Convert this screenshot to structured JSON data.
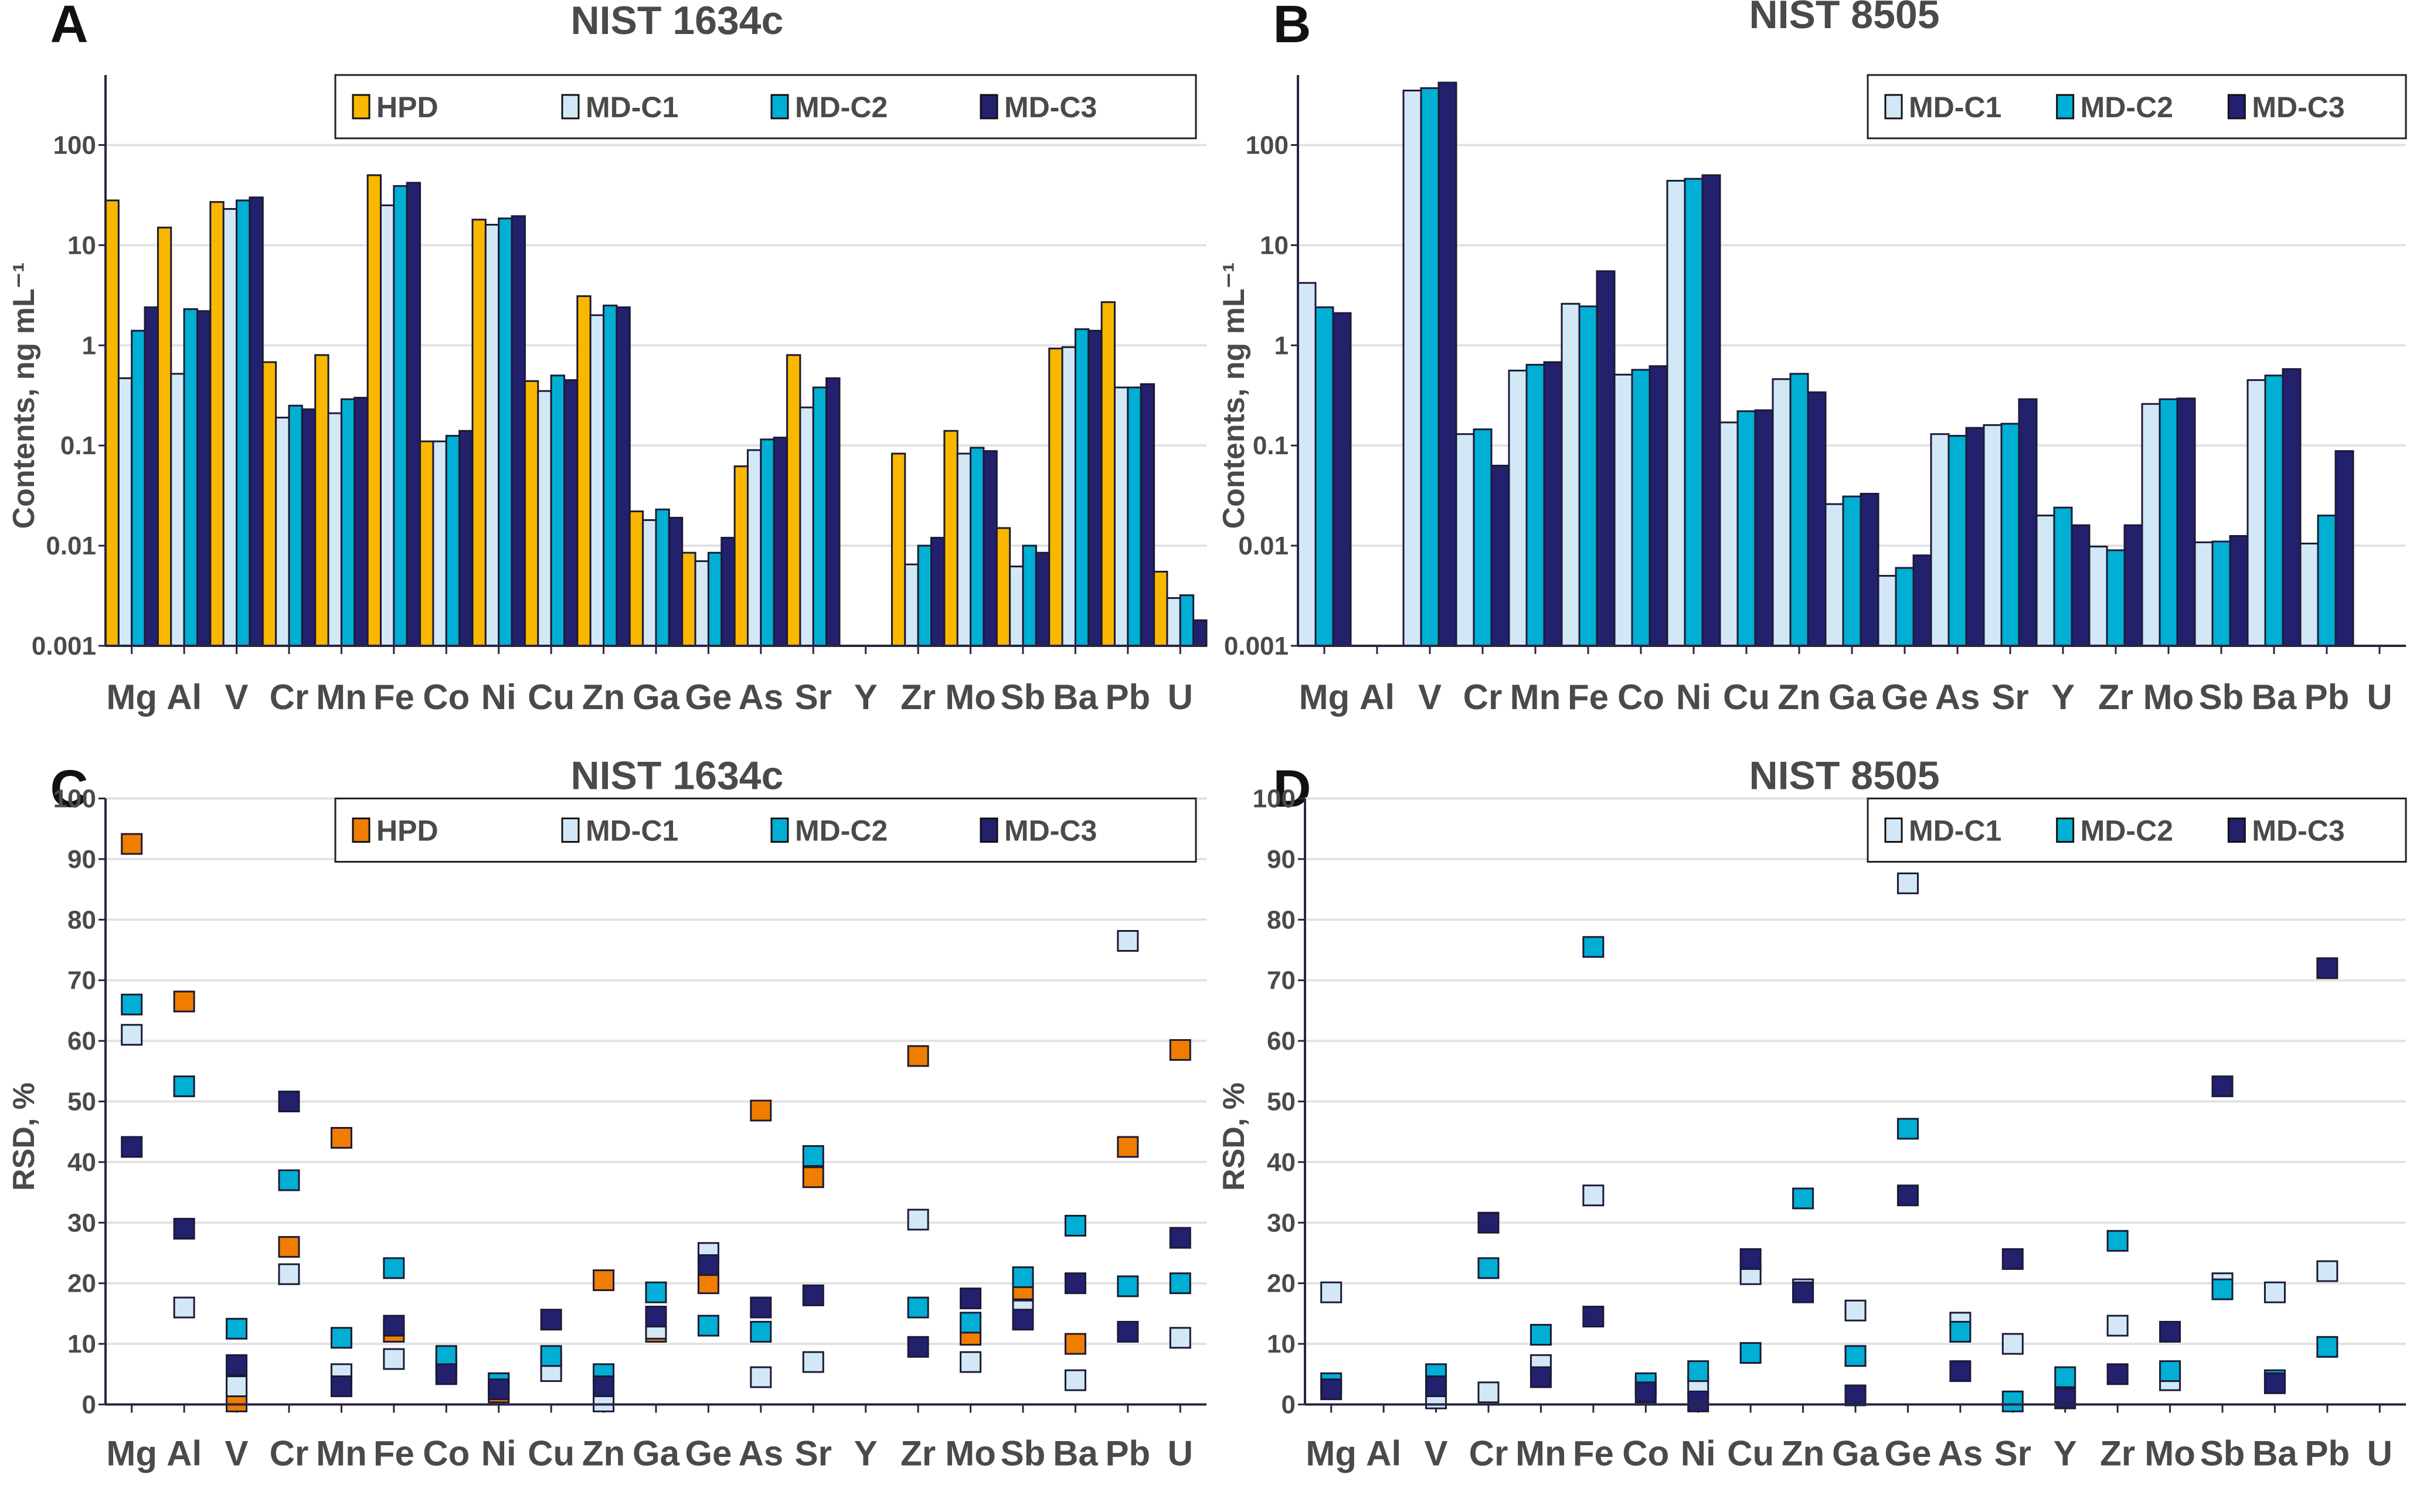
{
  "figure": {
    "categories": [
      "Mg",
      "Al",
      "V",
      "Cr",
      "Mn",
      "Fe",
      "Co",
      "Ni",
      "Cu",
      "Zn",
      "Ga",
      "Ge",
      "As",
      "Sr",
      "Y",
      "Zr",
      "Mo",
      "Sb",
      "Ba",
      "Pb",
      "U"
    ]
  },
  "chart_data": [
    {
      "id": "A",
      "type": "bar",
      "panel_letter": "A",
      "title": "NIST 1634c",
      "xlabel": "",
      "ylabel": "Contents, ng mL⁻¹",
      "yscale": "log",
      "ylim": [
        0.001,
        500
      ],
      "yticks": [
        0.001,
        0.01,
        0.1,
        1,
        10,
        100
      ],
      "ytick_labels": [
        "0.001",
        "0.01",
        "0.1",
        "1",
        "10",
        "100"
      ],
      "grid": true,
      "legend_position": "top-right",
      "categories": [
        "Mg",
        "Al",
        "V",
        "Cr",
        "Mn",
        "Fe",
        "Co",
        "Ni",
        "Cu",
        "Zn",
        "Ga",
        "Ge",
        "As",
        "Sr",
        "Y",
        "Zr",
        "Mo",
        "Sb",
        "Ba",
        "Pb",
        "U"
      ],
      "series": [
        {
          "name": "HPD",
          "color": "#F9B700",
          "values": [
            28,
            15,
            27,
            0.68,
            0.8,
            50,
            0.11,
            18,
            0.44,
            3.1,
            0.022,
            0.0085,
            0.062,
            0.8,
            null,
            0.083,
            0.14,
            0.015,
            0.93,
            2.7,
            0.0055
          ]
        },
        {
          "name": "MD-C1",
          "color": "#D2E8F7",
          "values": [
            0.47,
            0.52,
            23,
            0.19,
            0.21,
            25,
            0.11,
            16,
            0.35,
            2.0,
            0.018,
            0.007,
            0.09,
            0.24,
            null,
            0.0065,
            0.083,
            0.0062,
            0.96,
            0.38,
            0.003
          ]
        },
        {
          "name": "MD-C2",
          "color": "#00AFD3",
          "values": [
            1.4,
            2.3,
            28,
            0.25,
            0.29,
            39,
            0.125,
            18.5,
            0.5,
            2.5,
            0.023,
            0.0085,
            0.115,
            0.38,
            null,
            0.01,
            0.095,
            0.01,
            1.45,
            0.38,
            0.0032
          ]
        },
        {
          "name": "MD-C3",
          "color": "#23206E",
          "values": [
            2.4,
            2.2,
            30,
            0.23,
            0.3,
            42,
            0.14,
            19.5,
            0.45,
            2.4,
            0.019,
            0.012,
            0.12,
            0.47,
            null,
            0.012,
            0.088,
            0.0085,
            1.4,
            0.41,
            0.0018
          ]
        }
      ]
    },
    {
      "id": "B",
      "type": "bar",
      "panel_letter": "B",
      "title": "NIST 8505",
      "xlabel": "",
      "ylabel": "Contents, ng mL⁻¹",
      "yscale": "log",
      "ylim": [
        0.001,
        500
      ],
      "yticks": [
        0.001,
        0.01,
        0.1,
        1,
        10,
        100
      ],
      "ytick_labels": [
        "0.001",
        "0.01",
        "0.1",
        "1",
        "10",
        "100"
      ],
      "grid": true,
      "legend_position": "top-right",
      "categories": [
        "Mg",
        "Al",
        "V",
        "Cr",
        "Mn",
        "Fe",
        "Co",
        "Ni",
        "Cu",
        "Zn",
        "Ga",
        "Ge",
        "As",
        "Sr",
        "Y",
        "Zr",
        "Mo",
        "Sb",
        "Ba",
        "Pb",
        "U"
      ],
      "series": [
        {
          "name": "MD-C1",
          "color": "#D2E8F7",
          "values": [
            4.2,
            null,
            350,
            0.13,
            0.56,
            2.6,
            0.51,
            44,
            0.17,
            0.46,
            0.026,
            0.005,
            0.13,
            0.16,
            0.02,
            0.0098,
            0.26,
            0.0108,
            0.45,
            0.0105,
            null
          ]
        },
        {
          "name": "MD-C2",
          "color": "#00AFD3",
          "values": [
            2.4,
            null,
            370,
            0.145,
            0.64,
            2.45,
            0.57,
            46,
            0.22,
            0.52,
            0.031,
            0.006,
            0.125,
            0.165,
            0.024,
            0.009,
            0.29,
            0.011,
            0.5,
            0.02,
            null
          ]
        },
        {
          "name": "MD-C3",
          "color": "#23206E",
          "values": [
            2.1,
            null,
            420,
            0.063,
            0.68,
            5.5,
            0.62,
            50,
            0.225,
            0.34,
            0.033,
            0.008,
            0.15,
            0.29,
            0.016,
            0.016,
            0.295,
            0.0125,
            0.58,
            0.088,
            null
          ]
        }
      ]
    },
    {
      "id": "C",
      "type": "scatter",
      "panel_letter": "C",
      "title": "NIST 1634c",
      "xlabel": "",
      "ylabel": "RSD, %",
      "yscale": "linear",
      "ylim": [
        0,
        100
      ],
      "yticks": [
        0,
        10,
        20,
        30,
        40,
        50,
        60,
        70,
        80,
        90,
        100
      ],
      "ytick_labels": [
        "0",
        "10",
        "20",
        "30",
        "40",
        "50",
        "60",
        "70",
        "80",
        "90",
        "100"
      ],
      "grid": true,
      "legend_position": "top-right",
      "categories": [
        "Mg",
        "Al",
        "V",
        "Cr",
        "Mn",
        "Fe",
        "Co",
        "Ni",
        "Cu",
        "Zn",
        "Ga",
        "Ge",
        "As",
        "Sr",
        "Y",
        "Zr",
        "Mo",
        "Sb",
        "Ba",
        "Pb",
        "U"
      ],
      "series": [
        {
          "name": "HPD",
          "color": "#F07D00",
          "values": [
            92.5,
            66.5,
            0.5,
            26,
            44,
            12,
            6.5,
            2,
            7,
            20.5,
            12,
            20,
            48.5,
            37.5,
            null,
            57.5,
            11.5,
            19,
            10,
            42.5,
            58.5
          ]
        },
        {
          "name": "MD-C1",
          "color": "#D2E8F7",
          "values": [
            61,
            16,
            3,
            21.5,
            5,
            7.5,
            5.5,
            3.5,
            5.5,
            0.5,
            12.5,
            25,
            4.5,
            7,
            null,
            30.5,
            7,
            15.5,
            4,
            76.5,
            11
          ]
        },
        {
          "name": "MD-C2",
          "color": "#00AFD3",
          "values": [
            66,
            52.5,
            12.5,
            37,
            11,
            22.5,
            8,
            3.5,
            8,
            5,
            18.5,
            13,
            12,
            41,
            null,
            16,
            13.5,
            21,
            29.5,
            19.5,
            20
          ]
        },
        {
          "name": "MD-C3",
          "color": "#23206E",
          "values": [
            42.5,
            29,
            6.5,
            50,
            3,
            13,
            5,
            2.5,
            14,
            3,
            14.5,
            23,
            16,
            18,
            null,
            9.5,
            17.5,
            14,
            20,
            12,
            27.5
          ]
        }
      ]
    },
    {
      "id": "D",
      "type": "scatter",
      "panel_letter": "D",
      "title": "NIST 8505",
      "xlabel": "",
      "ylabel": "RSD, %",
      "yscale": "linear",
      "ylim": [
        0,
        100
      ],
      "yticks": [
        0,
        10,
        20,
        30,
        40,
        50,
        60,
        70,
        80,
        90,
        100
      ],
      "ytick_labels": [
        "0",
        "10",
        "20",
        "30",
        "40",
        "50",
        "60",
        "70",
        "80",
        "90",
        "100"
      ],
      "grid": true,
      "legend_position": "top-right",
      "categories": [
        "Mg",
        "Al",
        "V",
        "Cr",
        "Mn",
        "Fe",
        "Co",
        "Ni",
        "Cu",
        "Zn",
        "Ga",
        "Ge",
        "As",
        "Sr",
        "Y",
        "Zr",
        "Mo",
        "Sb",
        "Ba",
        "Pb",
        "U"
      ],
      "series": [
        {
          "name": "MD-C1",
          "color": "#D2E8F7",
          "values": [
            18.5,
            null,
            1,
            2,
            6.5,
            34.5,
            3,
            3,
            21.5,
            19,
            15.5,
            86,
            13.5,
            10,
            null,
            13,
            4,
            20,
            18.5,
            22,
            null
          ]
        },
        {
          "name": "MD-C2",
          "color": "#00AFD3",
          "values": [
            3.5,
            null,
            5,
            22.5,
            11.5,
            75.5,
            3.5,
            5.5,
            8.5,
            34,
            8,
            45.5,
            12,
            0.5,
            4.5,
            27,
            5.5,
            19,
            4,
            9.5,
            null
          ]
        },
        {
          "name": "MD-C3",
          "color": "#23206E",
          "values": [
            2.5,
            null,
            3,
            30,
            4.5,
            14.5,
            2,
            0.5,
            24,
            18.5,
            1.5,
            34.5,
            5.5,
            24,
            1,
            5,
            12,
            52.5,
            3.5,
            72,
            null
          ]
        }
      ]
    }
  ]
}
